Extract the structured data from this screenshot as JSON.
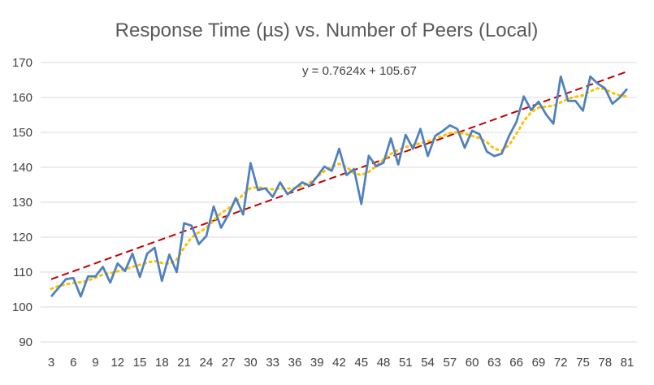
{
  "chart_data": {
    "type": "line",
    "title": "Response Time (µs) vs. Number of Peers (Local)",
    "xlabel": "",
    "ylabel": "",
    "xlim": [
      3,
      81
    ],
    "ylim": [
      90,
      170
    ],
    "y_ticks": [
      90,
      100,
      110,
      120,
      130,
      140,
      150,
      160,
      170
    ],
    "x_ticks": [
      3,
      6,
      9,
      12,
      15,
      18,
      21,
      24,
      27,
      30,
      33,
      36,
      39,
      42,
      45,
      48,
      51,
      54,
      57,
      60,
      63,
      66,
      69,
      72,
      75,
      78,
      81
    ],
    "grid": "horizontal",
    "legend": "none",
    "trendline_equation": "y = 0.7624x + 105.67",
    "trendline": {
      "slope": 0.7624,
      "intercept": 105.67
    },
    "x": [
      3,
      4,
      5,
      6,
      7,
      8,
      9,
      10,
      11,
      12,
      13,
      14,
      15,
      16,
      17,
      18,
      19,
      20,
      21,
      22,
      23,
      24,
      25,
      26,
      27,
      28,
      29,
      30,
      31,
      32,
      33,
      34,
      35,
      36,
      37,
      38,
      39,
      40,
      41,
      42,
      43,
      44,
      45,
      46,
      47,
      48,
      49,
      50,
      51,
      52,
      53,
      54,
      55,
      56,
      57,
      58,
      59,
      60,
      61,
      62,
      63,
      64,
      65,
      66,
      67,
      68,
      69,
      70,
      71,
      72,
      73,
      74,
      75,
      76,
      77,
      78,
      79,
      80,
      81
    ],
    "series": [
      {
        "values": [
          103,
          105.5,
          108,
          108.3,
          103,
          108.8,
          108.8,
          111.5,
          107,
          112.5,
          110.3,
          115.3,
          108.6,
          115.3,
          117,
          107.5,
          115,
          110,
          124,
          123.3,
          118,
          120.3,
          128.8,
          122.7,
          126.5,
          131.2,
          126.5,
          141.2,
          133.5,
          134,
          131.5,
          135.7,
          132.3,
          134,
          135.7,
          134.7,
          137.3,
          140.2,
          139,
          145.3,
          137.8,
          139.5,
          129.5,
          143.3,
          140.3,
          141.3,
          148.3,
          140.8,
          149.3,
          145.3,
          151,
          143.2,
          149,
          150.4,
          152,
          151,
          145.6,
          150.5,
          149.5,
          144.5,
          143.2,
          143.9,
          149,
          153,
          160.3,
          156.4,
          158.8,
          155.2,
          152.5,
          166,
          159,
          159,
          156.2,
          166,
          164,
          162.6,
          158.2,
          160,
          162.5
        ]
      },
      {
        "values": [
          105.2,
          106,
          106.5,
          106.9,
          107.1,
          107.6,
          108.4,
          109.3,
          109.7,
          110.2,
          110.8,
          111.5,
          112.1,
          112.7,
          113.2,
          112.6,
          112.4,
          113.6,
          117,
          119.9,
          121.4,
          122.6,
          124.8,
          126.9,
          128.2,
          130.1,
          132.2,
          134.1,
          134.3,
          134,
          133.7,
          134,
          133.9,
          134.1,
          134.7,
          135.6,
          137.2,
          138.9,
          140.2,
          141,
          140.1,
          138.3,
          137.8,
          138.7,
          140.3,
          142.2,
          143.8,
          145,
          145.8,
          146.3,
          146.9,
          147.5,
          148.2,
          149,
          149.8,
          150,
          149.6,
          149,
          148.4,
          147.2,
          145.3,
          144.8,
          146.4,
          149.6,
          153.2,
          155.8,
          157.1,
          157.4,
          157.6,
          158.6,
          159.6,
          160.2,
          160.6,
          161.8,
          162.6,
          162.4,
          161.3,
          160.6,
          160.3
        ]
      }
    ]
  }
}
